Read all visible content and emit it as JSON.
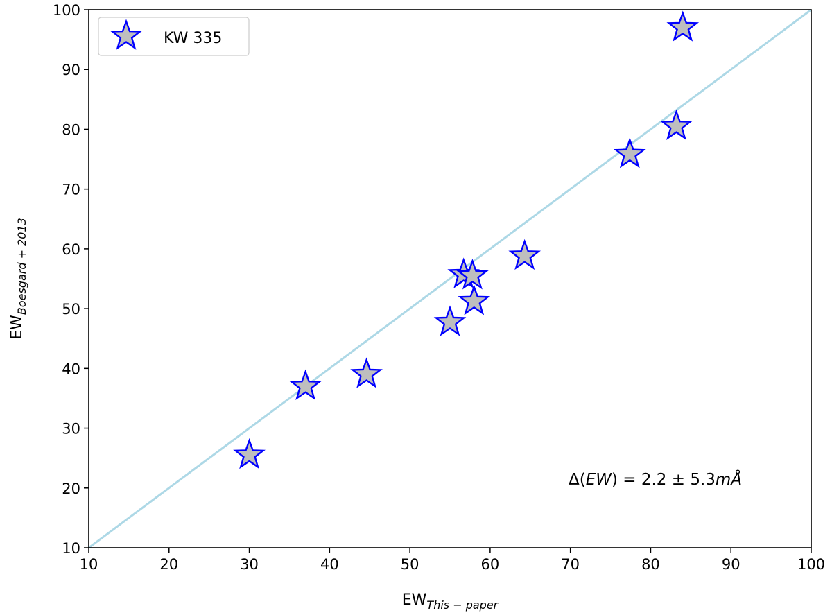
{
  "chart_data": {
    "type": "scatter",
    "xlabel": {
      "main": "EW",
      "sub": "This − paper"
    },
    "ylabel": {
      "main": "EW",
      "sub": "Boesgard + 2013"
    },
    "xlim": [
      10,
      100
    ],
    "ylim": [
      10,
      100
    ],
    "xticks": [
      "10",
      "20",
      "30",
      "40",
      "50",
      "60",
      "70",
      "80",
      "90",
      "100"
    ],
    "yticks": [
      "10",
      "20",
      "30",
      "40",
      "50",
      "60",
      "70",
      "80",
      "90",
      "100"
    ],
    "grid": false,
    "legend_position": "top-left",
    "series": [
      {
        "name": "KW 335",
        "marker": "star",
        "fill_color": "#bebebe",
        "edge_color": "#0000ff",
        "points": [
          {
            "x": 30.0,
            "y": 25.5
          },
          {
            "x": 37.0,
            "y": 37.0
          },
          {
            "x": 44.6,
            "y": 39.0
          },
          {
            "x": 55.0,
            "y": 47.7
          },
          {
            "x": 56.7,
            "y": 55.7
          },
          {
            "x": 57.8,
            "y": 55.5
          },
          {
            "x": 58.0,
            "y": 51.2
          },
          {
            "x": 64.3,
            "y": 58.8
          },
          {
            "x": 77.4,
            "y": 75.8
          },
          {
            "x": 83.2,
            "y": 80.5
          },
          {
            "x": 84.0,
            "y": 97.0
          }
        ]
      }
    ],
    "reference_line": {
      "type": "identity",
      "from": [
        10,
        10
      ],
      "to": [
        100,
        100
      ],
      "color": "#add8e6"
    },
    "annotation": {
      "prefix": "Δ(",
      "italic": "EW",
      "mid": ") = 2.2 ± 5.3",
      "italic2": "mÅ"
    }
  }
}
